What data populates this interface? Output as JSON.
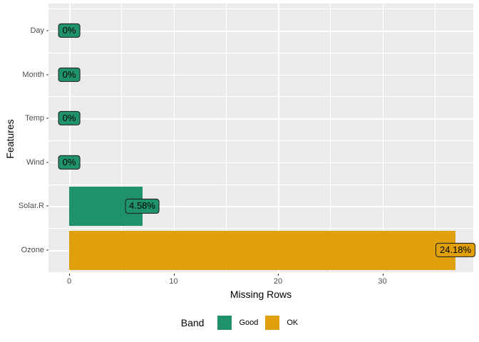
{
  "chart_data": {
    "type": "bar",
    "orientation": "horizontal",
    "xlabel": "Missing Rows",
    "ylabel": "Features",
    "categories": [
      "Day",
      "Month",
      "Temp",
      "Wind",
      "Solar.R",
      "Ozone"
    ],
    "bars": [
      {
        "feature": "Day",
        "missing_rows": 0,
        "label": "0%",
        "band": "Good"
      },
      {
        "feature": "Month",
        "missing_rows": 0,
        "label": "0%",
        "band": "Good"
      },
      {
        "feature": "Temp",
        "missing_rows": 0,
        "label": "0%",
        "band": "Good"
      },
      {
        "feature": "Wind",
        "missing_rows": 0,
        "label": "0%",
        "band": "Good"
      },
      {
        "feature": "Solar.R",
        "missing_rows": 7,
        "label": "4.58%",
        "band": "Good"
      },
      {
        "feature": "Ozone",
        "missing_rows": 37,
        "label": "24.18%",
        "band": "OK"
      }
    ],
    "x_major_ticks": [
      0,
      10,
      20,
      30
    ],
    "x_minor_ticks": [
      5,
      15,
      25,
      35
    ],
    "xlim": [
      -2,
      38.7
    ],
    "grid": true,
    "legend": {
      "title": "Band",
      "position": "bottom",
      "entries": [
        {
          "label": "Good",
          "color": "#20926A"
        },
        {
          "label": "OK",
          "color": "#DFA00C"
        }
      ]
    }
  },
  "colors": {
    "band_good": "#20926A",
    "band_ok": "#DFA00C",
    "panel_bg": "#EBEBEB",
    "grid": "#FFFFFF",
    "axis_text": "#4D4D4D",
    "tick_mark": "#333333",
    "label_border": "#1A1A1A",
    "title_text": "#000000"
  }
}
